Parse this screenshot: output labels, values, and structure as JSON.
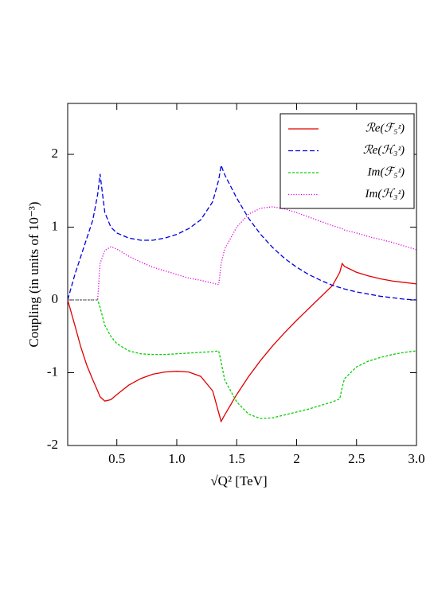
{
  "chart_data": {
    "type": "line",
    "xlabel": "√Q² [TeV]",
    "ylabel": "Coupling (in units of 10⁻³)",
    "xlim": [
      0.09,
      3.0
    ],
    "ylim": [
      -2,
      2.7
    ],
    "xticks": [
      0.5,
      {
        "value": 1,
        "label": "1.0"
      },
      1.5,
      2,
      2.5,
      {
        "value": 3,
        "label": "3.0"
      }
    ],
    "yticks": [
      -2,
      -1,
      0,
      1,
      2
    ],
    "legend": "top-right",
    "x": [
      0.09,
      0.15,
      0.2,
      0.25,
      0.3,
      0.34,
      0.36,
      0.4,
      0.45,
      0.5,
      0.6,
      0.7,
      0.8,
      0.9,
      1.0,
      1.1,
      1.2,
      1.3,
      1.35,
      1.37,
      1.4,
      1.5,
      1.6,
      1.7,
      1.8,
      1.9,
      2.0,
      2.1,
      2.2,
      2.3,
      2.36,
      2.38,
      2.4,
      2.5,
      2.6,
      2.7,
      2.8,
      2.9,
      3.0
    ],
    "series": [
      {
        "name": "ℛe(ℱ₅ᶻ)",
        "color": "#e00000",
        "style": "solid",
        "values": [
          0,
          -0.35,
          -0.65,
          -0.9,
          -1.1,
          -1.25,
          -1.33,
          -1.39,
          -1.37,
          -1.3,
          -1.17,
          -1.08,
          -1.02,
          -0.99,
          -0.98,
          -0.99,
          -1.05,
          -1.25,
          -1.55,
          -1.67,
          -1.58,
          -1.3,
          -1.05,
          -0.83,
          -0.63,
          -0.45,
          -0.28,
          -0.12,
          0.04,
          0.2,
          0.38,
          0.5,
          0.46,
          0.38,
          0.33,
          0.29,
          0.26,
          0.24,
          0.22
        ]
      },
      {
        "name": "ℛe(ℋ₃ᶻ)",
        "color": "#0000e0",
        "style": "dashed",
        "values": [
          0,
          0.35,
          0.6,
          0.85,
          1.1,
          1.45,
          1.73,
          1.2,
          1.0,
          0.92,
          0.85,
          0.82,
          0.82,
          0.85,
          0.9,
          0.98,
          1.1,
          1.35,
          1.65,
          1.85,
          1.72,
          1.4,
          1.12,
          0.9,
          0.72,
          0.57,
          0.45,
          0.35,
          0.27,
          0.2,
          0.17,
          0.16,
          0.15,
          0.11,
          0.08,
          0.05,
          0.03,
          0.01,
          0
        ]
      },
      {
        "name": "Im(ℱ₅ᶻ)",
        "color": "#00d000",
        "style": "short-dashed",
        "values": [
          0,
          0,
          0,
          0,
          0,
          0,
          -0.1,
          -0.35,
          -0.5,
          -0.6,
          -0.7,
          -0.74,
          -0.75,
          -0.75,
          -0.74,
          -0.73,
          -0.72,
          -0.71,
          -0.7,
          -0.85,
          -1.1,
          -1.4,
          -1.57,
          -1.63,
          -1.62,
          -1.58,
          -1.54,
          -1.5,
          -1.45,
          -1.4,
          -1.36,
          -1.2,
          -1.08,
          -0.92,
          -0.84,
          -0.79,
          -0.75,
          -0.72,
          -0.7
        ]
      },
      {
        "name": "Im(ℋ₃ᶻ)",
        "color": "#e000e0",
        "style": "dotted",
        "values": [
          0,
          0,
          0,
          0,
          0,
          0,
          0.5,
          0.68,
          0.73,
          0.7,
          0.6,
          0.52,
          0.45,
          0.4,
          0.35,
          0.3,
          0.27,
          0.23,
          0.21,
          0.5,
          0.7,
          1.0,
          1.18,
          1.26,
          1.28,
          1.25,
          1.2,
          1.14,
          1.08,
          1.02,
          0.99,
          0.98,
          0.96,
          0.92,
          0.87,
          0.83,
          0.79,
          0.74,
          0.69
        ]
      }
    ]
  }
}
